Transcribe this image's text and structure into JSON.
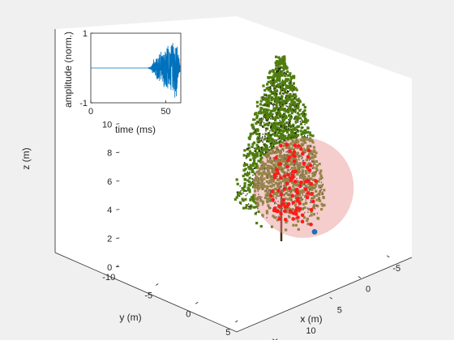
{
  "figure": {
    "background": "#f0f0f0",
    "axes_color": "#ffffff"
  },
  "chart_data": [
    {
      "type": "scatter3d",
      "title": "",
      "xlabel": "x (m)",
      "ylabel": "y (m)",
      "zlabel": "z (m)",
      "xlim": [
        -5,
        15
      ],
      "ylim": [
        -10,
        10
      ],
      "zlim": [
        0,
        13
      ],
      "x_ticks": [
        "-5",
        "0",
        "5",
        "10",
        "15"
      ],
      "y_ticks": [
        "-10",
        "-5",
        "0",
        "5",
        "10"
      ],
      "z_ticks": [
        "0",
        "2",
        "4",
        "6",
        "8",
        "10",
        "12"
      ],
      "grid": false,
      "objects": {
        "tree": {
          "trunk_base": [
            0,
            0,
            0
          ],
          "trunk_top": [
            0,
            0,
            3.5
          ],
          "trunk_color": "#4a2b12",
          "foliage_color": "#4f7d0f",
          "tiers": [
            {
              "z": 12.5,
              "radius": 0.6
            },
            {
              "z": 11.5,
              "radius": 1.5
            },
            {
              "z": 10.5,
              "radius": 2.1
            },
            {
              "z": 9.5,
              "radius": 2.6
            },
            {
              "z": 8.5,
              "radius": 3.1
            },
            {
              "z": 7.5,
              "radius": 3.5
            },
            {
              "z": 6.5,
              "radius": 3.9
            },
            {
              "z": 5.5,
              "radius": 4.3
            },
            {
              "z": 4.6,
              "radius": 4.6
            },
            {
              "z": 3.8,
              "radius": 4.8
            }
          ]
        },
        "sphere": {
          "center": [
            2.8,
            4.8,
            5.8
          ],
          "radius": 4.0,
          "color": "#e8908e",
          "opacity": 0.45
        },
        "highlight_color": "#ff1a1a",
        "source_point": {
          "position": [
            6.0,
            8.5,
            4.6
          ],
          "color": "#1f6fb4"
        }
      }
    },
    {
      "type": "line",
      "title": "",
      "xlabel": "time (ms)",
      "ylabel": "amplitude (norm.)",
      "xlim": [
        0,
        60
      ],
      "ylim": [
        -1,
        1
      ],
      "x_ticks": [
        "0",
        "50"
      ],
      "y_ticks": [
        "-1",
        "1"
      ],
      "series_color": "#0072bd",
      "series": [
        {
          "description": "Flat baseline until ~38 ms, then a noise burst growing to full amplitude near 55-58 ms",
          "x": [
            0,
            38,
            40,
            42,
            44,
            46,
            48,
            50,
            52,
            54,
            55,
            56,
            57,
            58,
            60
          ],
          "envelope": [
            0,
            0,
            0.05,
            0.3,
            0.45,
            0.55,
            0.6,
            0.65,
            0.7,
            0.8,
            1.0,
            0.95,
            1.0,
            0.6,
            0.0
          ]
        }
      ]
    }
  ]
}
